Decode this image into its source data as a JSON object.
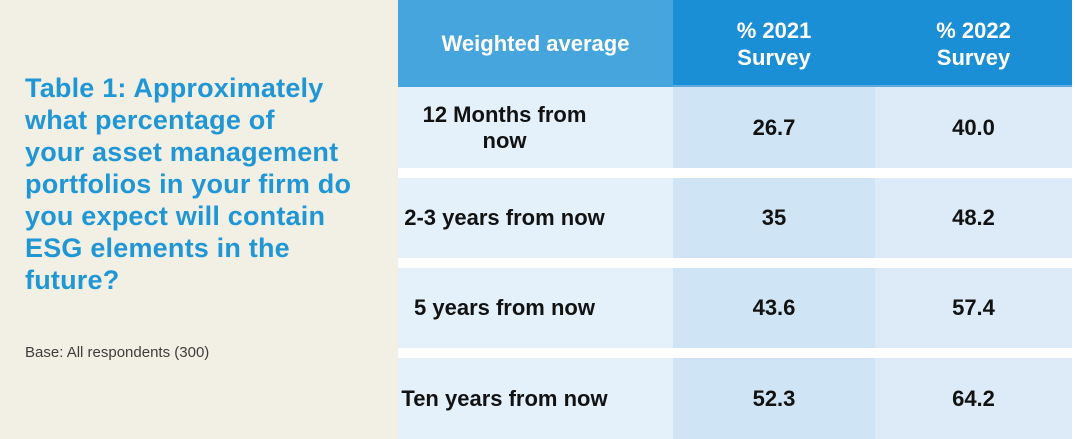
{
  "colors": {
    "beige": "#f2f0e5",
    "title_blue": "#2196d5",
    "header_light_blue": "#47a5dd",
    "header_dark_blue": "#1b8fd6",
    "row_col1_bg": "#e4f1fb",
    "row_col2_bg": "#cfe4f4",
    "row_col3_bg": "#dcebf7",
    "body_text": "#121212"
  },
  "left_panel": {
    "title_lines": [
      "Table 1: Approximately",
      "what percentage of",
      "your asset management",
      "portfolios in your firm do",
      "you expect will contain",
      "ESG elements in the",
      "future?"
    ],
    "base_note": "Base: All respondents (300)"
  },
  "table": {
    "header": {
      "col1": "Weighted average",
      "col2_line1": "% 2021",
      "col2_line2": "Survey",
      "col3_line1": "% 2022",
      "col3_line2": "Survey"
    },
    "rows": [
      {
        "label": "12 Months from now",
        "v2021": "26.7",
        "v2022": "40.0"
      },
      {
        "label": "2-3 years from now",
        "v2021": "35",
        "v2022": "48.2"
      },
      {
        "label": "5 years from now",
        "v2021": "43.6",
        "v2022": "57.4"
      },
      {
        "label": "Ten years from now",
        "v2021": "52.3",
        "v2022": "64.2"
      }
    ]
  },
  "chart_data": {
    "type": "table",
    "title": "Table 1: Approximately what percentage of your asset management portfolios in your firm do you expect will contain ESG elements in the future?",
    "note": "Base: All respondents (300)",
    "columns": [
      "Weighted average",
      "% 2021 Survey",
      "% 2022 Survey"
    ],
    "rows": [
      [
        "12 Months from now",
        26.7,
        40.0
      ],
      [
        "2-3 years from now",
        35,
        48.2
      ],
      [
        "5 years from now",
        43.6,
        57.4
      ],
      [
        "Ten years from now",
        52.3,
        64.2
      ]
    ]
  }
}
